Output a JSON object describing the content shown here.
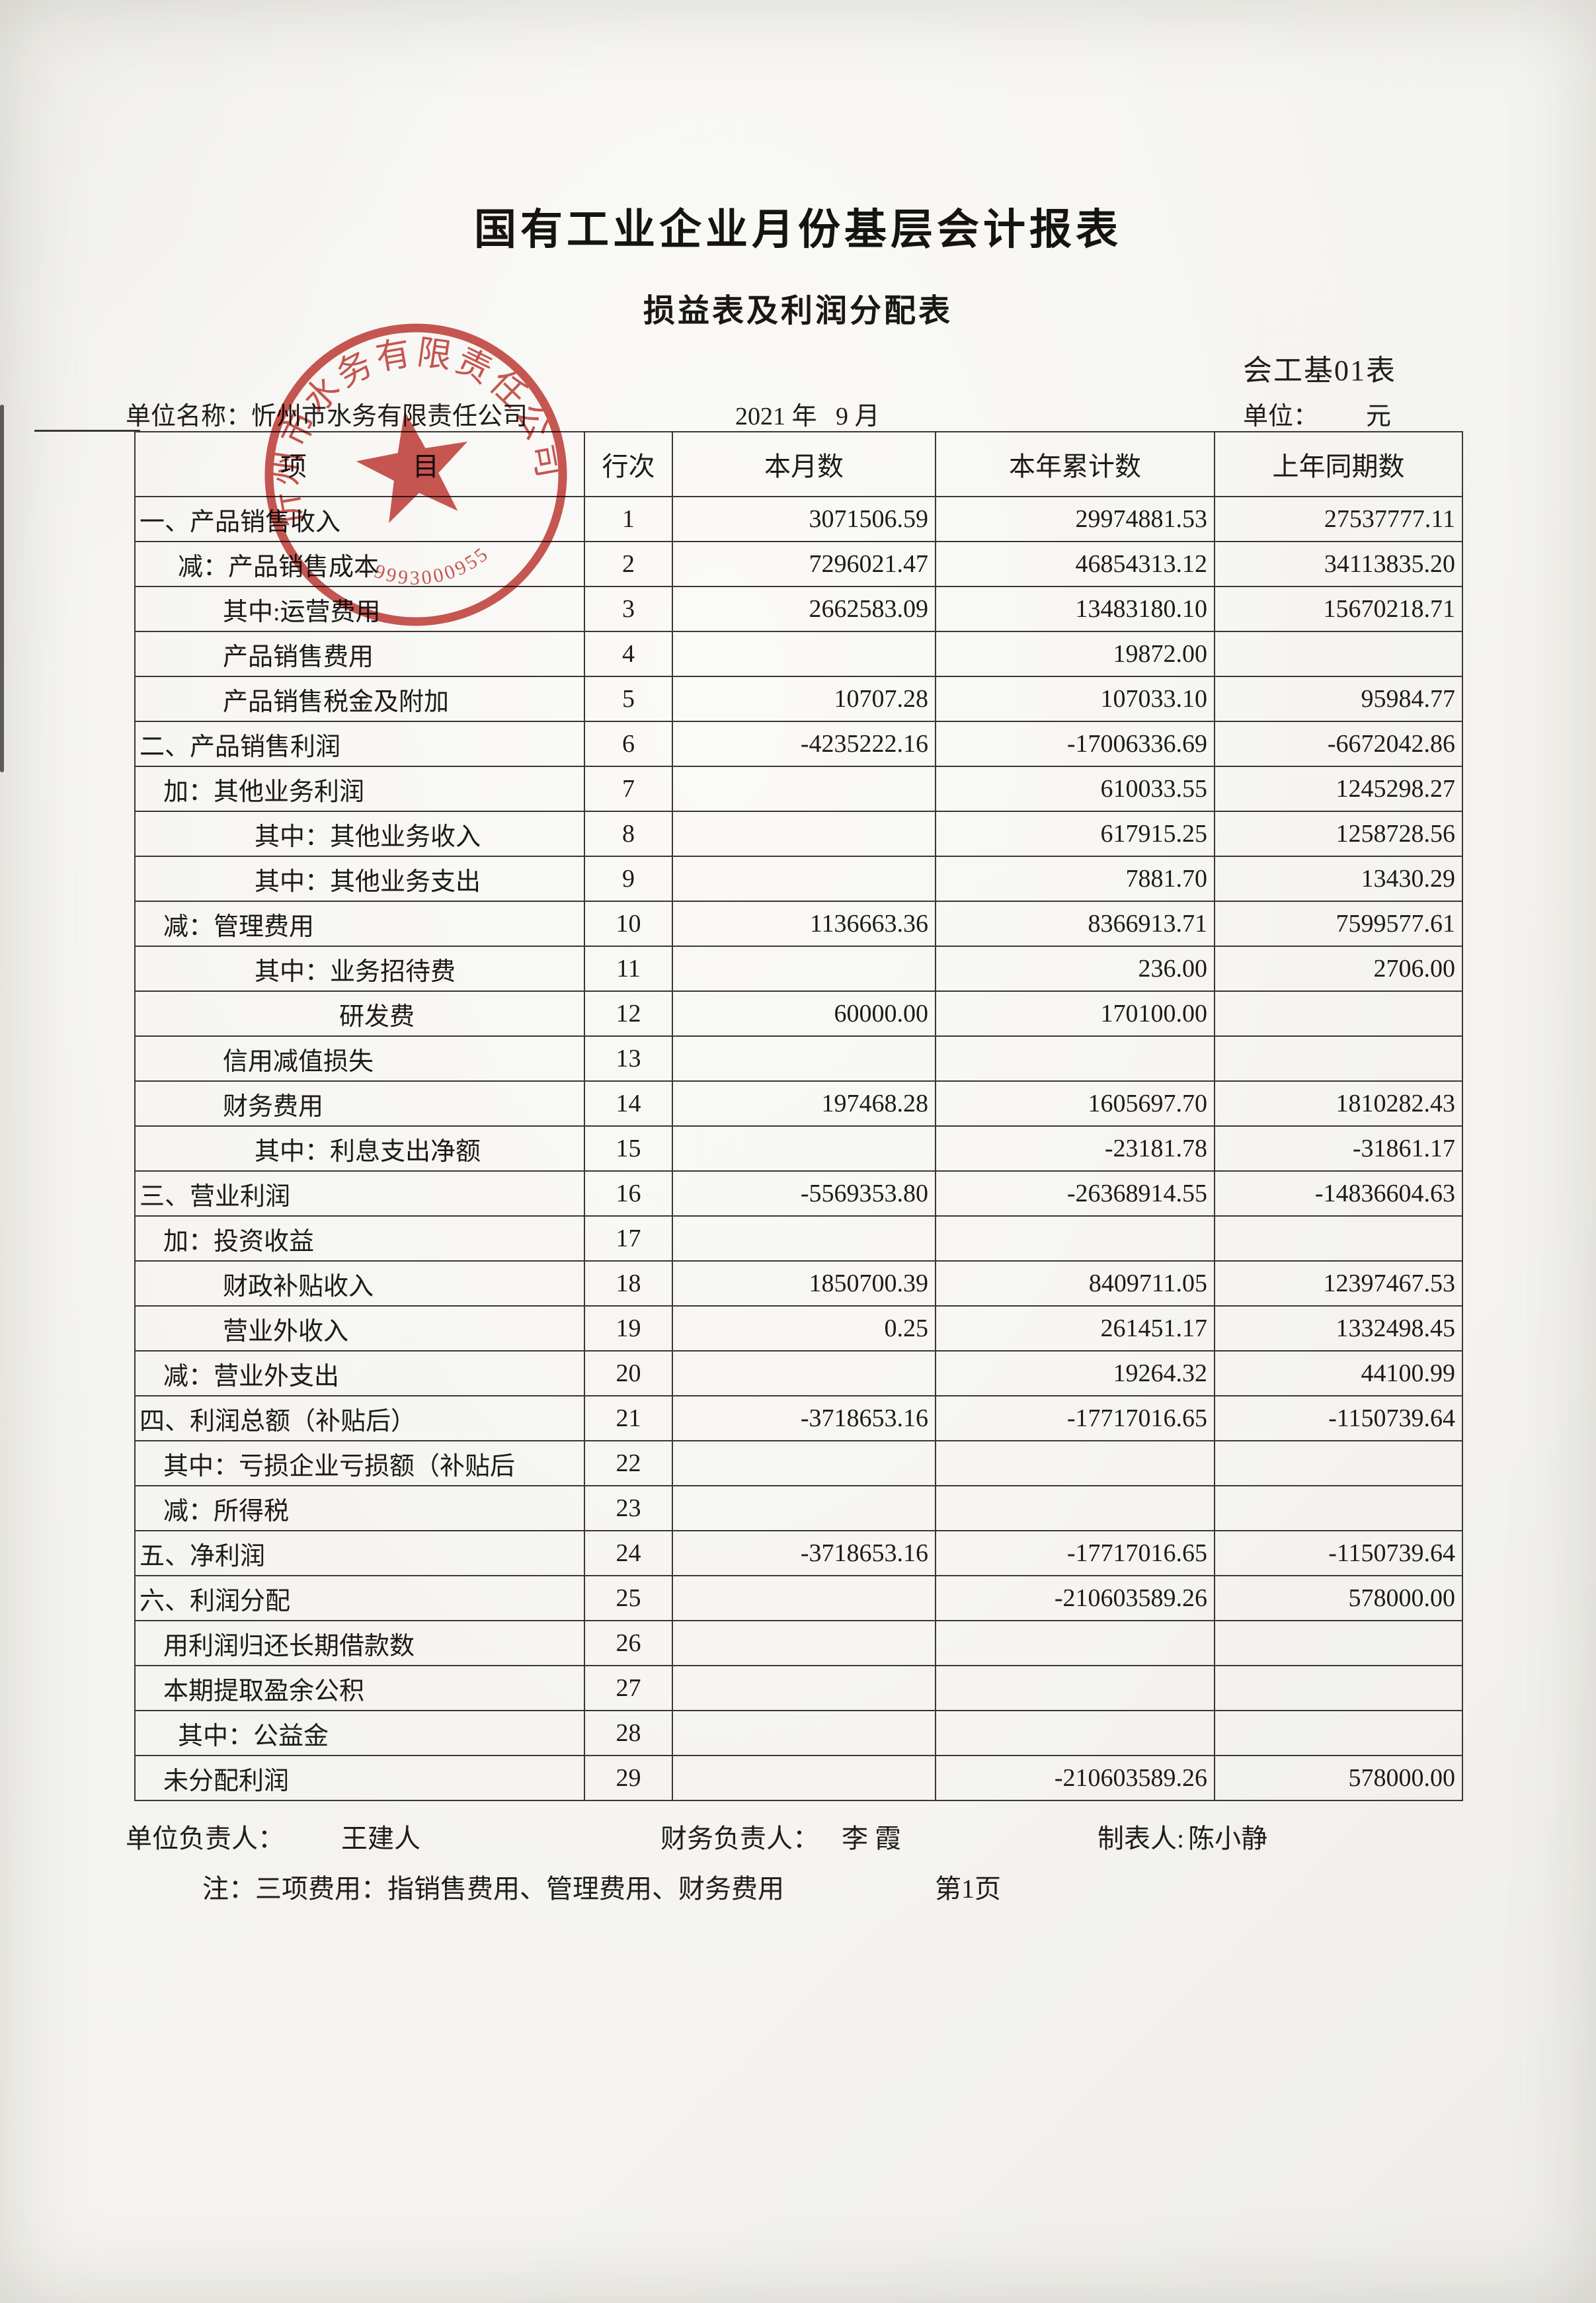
{
  "header": {
    "title": "国有工业企业月份基层会计报表",
    "subtitle": "损益表及利润分配表",
    "form_code": "会工基01表",
    "unit_name_label": "单位名称：",
    "unit_name": "忻州市水务有限责任公司",
    "period": "2021 年   9 月",
    "unit_label": "单位：",
    "unit_value": "元"
  },
  "table": {
    "columns": [
      "项　　　　目",
      "行次",
      "本月数",
      "本年累计数",
      "上年同期数"
    ],
    "rows": [
      {
        "label": "一、产品销售收入",
        "line": "1",
        "month": "3071506.59",
        "ytd": "29974881.53",
        "prior": "27537777.11",
        "indent": 0
      },
      {
        "label": "减：产品销售成本",
        "line": "2",
        "month": "7296021.47",
        "ytd": "46854313.12",
        "prior": "34113835.20",
        "indent": 2
      },
      {
        "label": "其中:运营费用",
        "line": "3",
        "month": "2662583.09",
        "ytd": "13483180.10",
        "prior": "15670218.71",
        "indent": 3
      },
      {
        "label": "产品销售费用",
        "line": "4",
        "month": "",
        "ytd": "19872.00",
        "prior": "",
        "indent": 3
      },
      {
        "label": "产品销售税金及附加",
        "line": "5",
        "month": "10707.28",
        "ytd": "107033.10",
        "prior": "95984.77",
        "indent": 3
      },
      {
        "label": "二、产品销售利润",
        "line": "6",
        "month": "-4235222.16",
        "ytd": "-17006336.69",
        "prior": "-6672042.86",
        "indent": 0
      },
      {
        "label": "加：其他业务利润",
        "line": "7",
        "month": "",
        "ytd": "610033.55",
        "prior": "1245298.27",
        "indent": 1
      },
      {
        "label": "其中：其他业务收入",
        "line": "8",
        "month": "",
        "ytd": "617915.25",
        "prior": "1258728.56",
        "indent": 4
      },
      {
        "label": "其中：其他业务支出",
        "line": "9",
        "month": "",
        "ytd": "7881.70",
        "prior": "13430.29",
        "indent": 4
      },
      {
        "label": "减：管理费用",
        "line": "10",
        "month": "1136663.36",
        "ytd": "8366913.71",
        "prior": "7599577.61",
        "indent": 1
      },
      {
        "label": "其中：业务招待费",
        "line": "11",
        "month": "",
        "ytd": "236.00",
        "prior": "2706.00",
        "indent": 4
      },
      {
        "label": "研发费",
        "line": "12",
        "month": "60000.00",
        "ytd": "170100.00",
        "prior": "",
        "indent": 5
      },
      {
        "label": "信用减值损失",
        "line": "13",
        "month": "",
        "ytd": "",
        "prior": "",
        "indent": 3
      },
      {
        "label": "财务费用",
        "line": "14",
        "month": "197468.28",
        "ytd": "1605697.70",
        "prior": "1810282.43",
        "indent": 3
      },
      {
        "label": "其中：利息支出净额",
        "line": "15",
        "month": "",
        "ytd": "-23181.78",
        "prior": "-31861.17",
        "indent": 4
      },
      {
        "label": "三、营业利润",
        "line": "16",
        "month": "-5569353.80",
        "ytd": "-26368914.55",
        "prior": "-14836604.63",
        "indent": 0
      },
      {
        "label": "加：投资收益",
        "line": "17",
        "month": "",
        "ytd": "",
        "prior": "",
        "indent": 1
      },
      {
        "label": "财政补贴收入",
        "line": "18",
        "month": "1850700.39",
        "ytd": "8409711.05",
        "prior": "12397467.53",
        "indent": 3
      },
      {
        "label": "营业外收入",
        "line": "19",
        "month": "0.25",
        "ytd": "261451.17",
        "prior": "1332498.45",
        "indent": 3
      },
      {
        "label": "减：营业外支出",
        "line": "20",
        "month": "",
        "ytd": "19264.32",
        "prior": "44100.99",
        "indent": 1
      },
      {
        "label": "四、利润总额（补贴后）",
        "line": "21",
        "month": "-3718653.16",
        "ytd": "-17717016.65",
        "prior": "-1150739.64",
        "indent": 0
      },
      {
        "label": "其中：亏损企业亏损额（补贴后",
        "line": "22",
        "month": "",
        "ytd": "",
        "prior": "",
        "indent": 1
      },
      {
        "label": "减：所得税",
        "line": "23",
        "month": "",
        "ytd": "",
        "prior": "",
        "indent": 1
      },
      {
        "label": "五、净利润",
        "line": "24",
        "month": "-3718653.16",
        "ytd": "-17717016.65",
        "prior": "-1150739.64",
        "indent": 0
      },
      {
        "label": "六、利润分配",
        "line": "25",
        "month": "",
        "ytd": "-210603589.26",
        "prior": "578000.00",
        "indent": 0
      },
      {
        "label": "用利润归还长期借款数",
        "line": "26",
        "month": "",
        "ytd": "",
        "prior": "",
        "indent": 1
      },
      {
        "label": "本期提取盈余公积",
        "line": "27",
        "month": "",
        "ytd": "",
        "prior": "",
        "indent": 1
      },
      {
        "label": "其中：公益金",
        "line": "28",
        "month": "",
        "ytd": "",
        "prior": "",
        "indent": 2
      },
      {
        "label": "未分配利润",
        "line": "29",
        "month": "",
        "ytd": "-210603589.26",
        "prior": "578000.00",
        "indent": 1
      }
    ]
  },
  "stamp": {
    "company": "忻州市水务有限责任公司",
    "number": "9993000955",
    "color": "#c23a34"
  },
  "footer": {
    "unit_head_label": "单位负责人：",
    "unit_head": "王建人",
    "finance_head_label": "财务负责人：",
    "finance_head": "李 霞",
    "preparer_label": "制表人:",
    "preparer": "陈小静",
    "note": "注：三项费用：指销售费用、管理费用、财务费用",
    "page_no": "第1页"
  }
}
